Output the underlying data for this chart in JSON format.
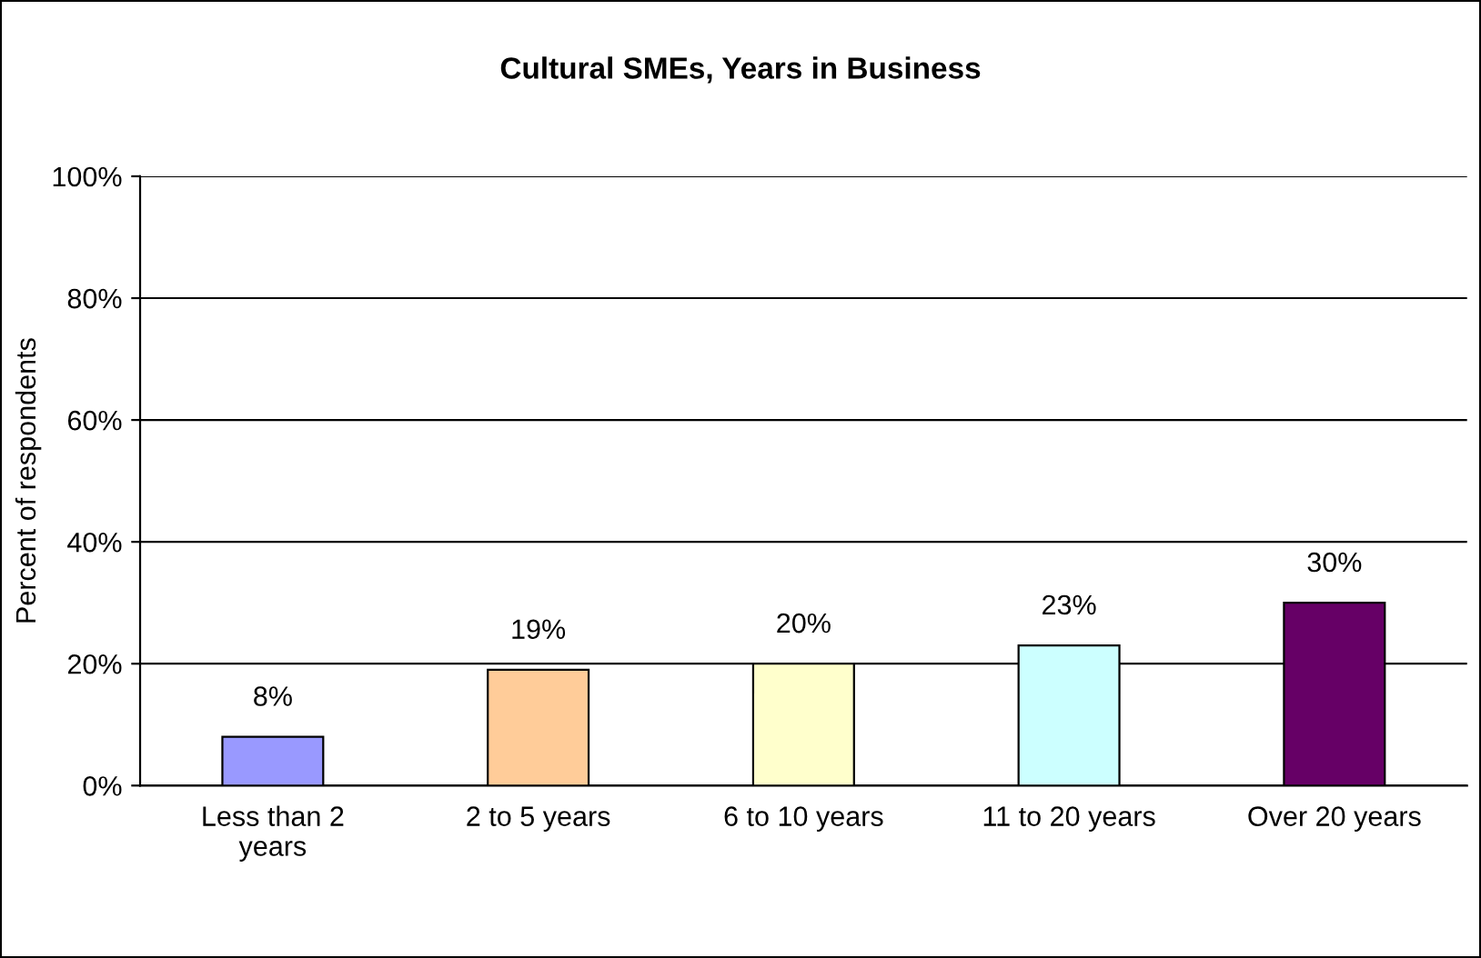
{
  "chart_data": {
    "type": "bar",
    "title": "Cultural SMEs, Years in Business",
    "ylabel": "Percent of respondents",
    "categories": [
      "Less than 2 years",
      "2 to 5 years",
      "6 to 10 years",
      "11 to 20 years",
      "Over 20 years"
    ],
    "values": [
      8,
      19,
      20,
      23,
      30
    ],
    "colors": [
      "#9999ff",
      "#ffcc99",
      "#ffffcc",
      "#ccffff",
      "#660066"
    ],
    "value_labels": [
      "8%",
      "19%",
      "20%",
      "23%",
      "30%"
    ],
    "ylim": [
      0,
      100
    ],
    "yticks": [
      {
        "value": 0,
        "label": "0%"
      },
      {
        "value": 20,
        "label": "20%"
      },
      {
        "value": 40,
        "label": "40%"
      },
      {
        "value": 60,
        "label": "60%"
      },
      {
        "value": 80,
        "label": "80%"
      },
      {
        "value": 100,
        "label": "100%"
      }
    ],
    "grid": "y",
    "legend": false
  }
}
